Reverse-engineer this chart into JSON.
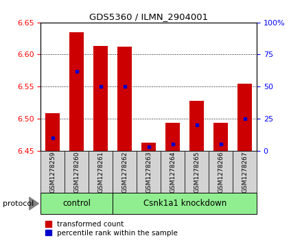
{
  "title": "GDS5360 / ILMN_2904001",
  "samples": [
    "GSM1278259",
    "GSM1278260",
    "GSM1278261",
    "GSM1278262",
    "GSM1278263",
    "GSM1278264",
    "GSM1278265",
    "GSM1278266",
    "GSM1278267"
  ],
  "transformed_count": [
    6.508,
    6.635,
    6.613,
    6.612,
    6.462,
    6.493,
    6.528,
    6.493,
    6.554
  ],
  "percentile_rank": [
    10,
    62,
    50,
    50,
    3,
    5,
    20,
    5,
    25
  ],
  "baseline": 6.45,
  "ylim_left": [
    6.45,
    6.65
  ],
  "ylim_right": [
    0,
    100
  ],
  "yticks_left": [
    6.45,
    6.5,
    6.55,
    6.6,
    6.65
  ],
  "yticks_right": [
    0,
    25,
    50,
    75,
    100
  ],
  "ytick_right_labels": [
    "0",
    "25",
    "50",
    "75",
    "100%"
  ],
  "bar_color": "#cc0000",
  "blue_color": "#0000cc",
  "control_samples": 3,
  "protocol_control_label": "control",
  "protocol_treatment_label": "Csnk1a1 knockdown",
  "protocol_label": "protocol",
  "bg_color_plot": "#ffffff",
  "bg_color_xtick": "#d3d3d3",
  "grid_color": "#000000",
  "protocol_bg": "#90ee90",
  "bar_width": 0.6,
  "legend_red": "transformed count",
  "legend_blue": "percentile rank within the sample"
}
